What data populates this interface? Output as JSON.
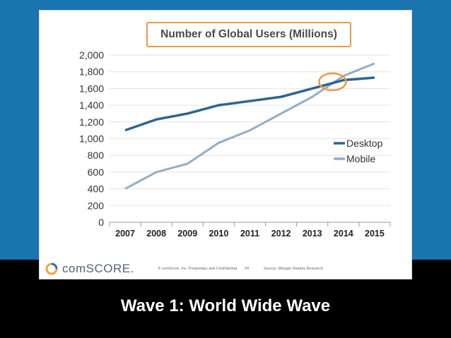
{
  "chart_data": {
    "type": "line",
    "title": "Number of Global Users (Millions)",
    "categories": [
      "2007",
      "2008",
      "2009",
      "2010",
      "2011",
      "2012",
      "2013",
      "2014",
      "2015"
    ],
    "series": [
      {
        "name": "Desktop",
        "color": "#2d6591",
        "values": [
          1100,
          1230,
          1300,
          1400,
          1450,
          1500,
          1600,
          1700,
          1730
        ]
      },
      {
        "name": "Mobile",
        "color": "#93aec6",
        "values": [
          400,
          600,
          700,
          950,
          1100,
          1300,
          1500,
          1750,
          1900
        ]
      }
    ],
    "yticks": [
      "0",
      "200",
      "400",
      "600",
      "800",
      "1,000",
      "1,200",
      "1,400",
      "1,600",
      "1,800",
      "2,000"
    ],
    "ylim": [
      0,
      2000
    ],
    "legend": "right",
    "annotation": "crossover circle near 2013-2014 at ~1,680"
  },
  "footer": {
    "logo": "comSCORE.",
    "copyright": "© comScore, Inc.  Proprietary and Confidential.",
    "page": "24",
    "source": "Source: Morgan Stanley Research"
  },
  "banner": {
    "text": "Wave 1: World Wide Wave"
  },
  "colors": {
    "slide_blue": "#1a74ae",
    "highlight": "#e89a46"
  }
}
